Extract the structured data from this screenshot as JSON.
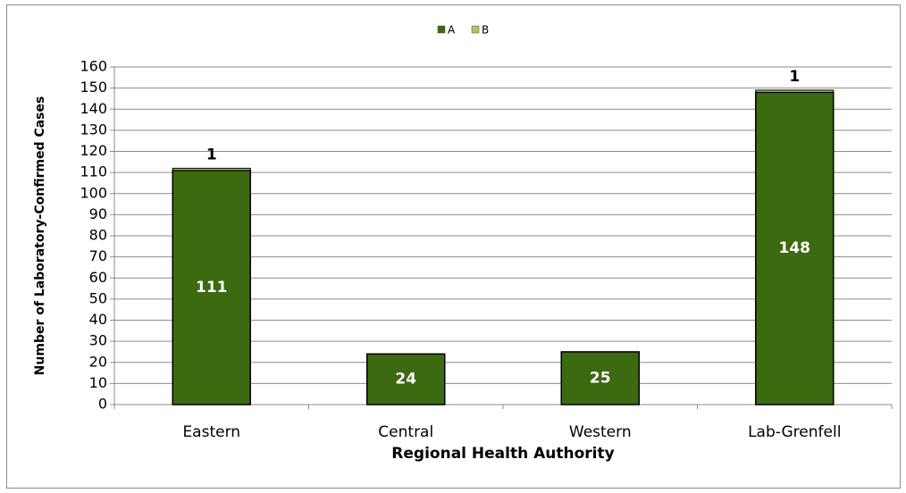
{
  "chart_data": {
    "type": "stacked-bar",
    "x_label": "Regional Health Authority",
    "y_label": "Number of Laboratory-Confirmed Cases",
    "categories": [
      "Eastern",
      "Central",
      "Western",
      "Lab-Grenfell"
    ],
    "series": [
      {
        "name": "A",
        "color": "#3b6a10",
        "values": [
          111,
          24,
          25,
          148
        ]
      },
      {
        "name": "B",
        "color": "#a9c46c",
        "values": [
          1,
          null,
          null,
          1
        ]
      }
    ],
    "ylim": [
      0,
      160
    ],
    "yticks": [
      0,
      10,
      20,
      30,
      40,
      50,
      60,
      70,
      80,
      90,
      100,
      110,
      120,
      130,
      140,
      150,
      160
    ],
    "grid": true,
    "legend": "top"
  }
}
